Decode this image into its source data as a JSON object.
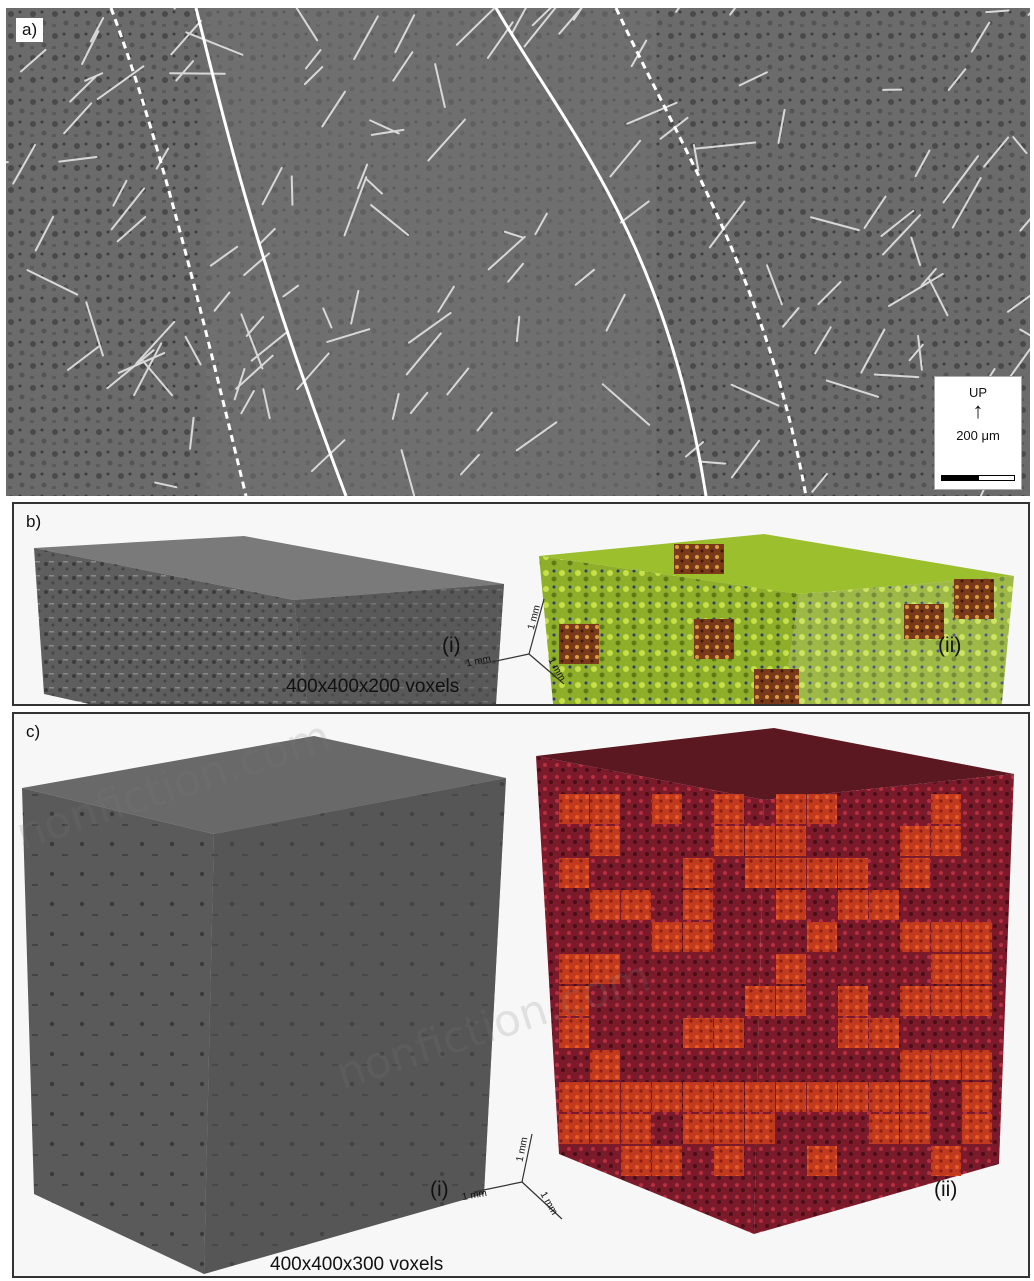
{
  "panel_a": {
    "label": "a)",
    "scale_up": "UP",
    "scale_text": "200 μm"
  },
  "panel_b": {
    "label": "b)",
    "label_i": "(i)",
    "label_ii": "(ii)",
    "voxels": "400x400x200 voxels",
    "axis_labels": [
      "1 mm",
      "1 mm",
      "1 mm"
    ]
  },
  "panel_c": {
    "label": "c)",
    "label_i": "(i)",
    "label_ii": "(ii)",
    "voxels": "400x400x300 voxels",
    "axis_labels": [
      "1 mm",
      "1 mm",
      "1 mm"
    ]
  },
  "watermark": "nonfiction.com"
}
